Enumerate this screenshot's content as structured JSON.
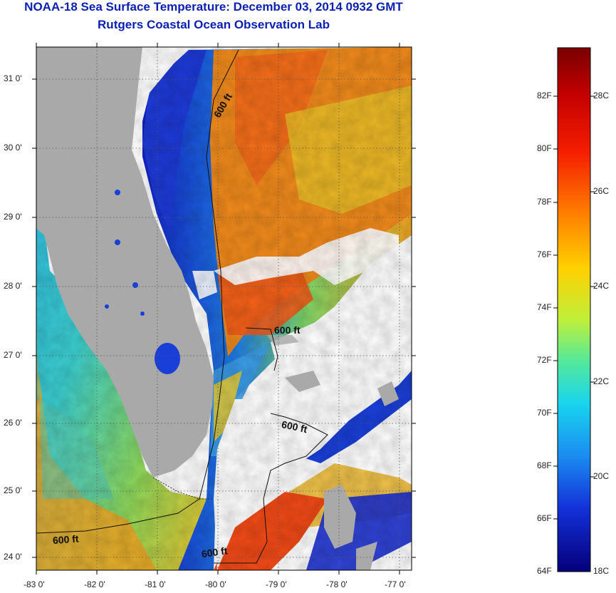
{
  "title_line1": "NOAA-18 Sea Surface Temperature:  December 03, 2014 0932 GMT",
  "title_line2": "Rutgers Coastal Ocean Observation Lab",
  "colors": {
    "title": "#0b1fb0",
    "land": "#a9a9a9",
    "cloud": "#ffffff"
  },
  "map": {
    "lat_ticks": [
      "31 0'",
      "30 0'",
      "29 0'",
      "28 0'",
      "27 0'",
      "26 0'",
      "25 0'",
      "24 0'"
    ],
    "lon_ticks": [
      "-83 0'",
      "-82 0'",
      "-81 0'",
      "-80 0'",
      "-79 0'",
      "-78 0'",
      "-77 0'"
    ],
    "contour_label": "600 ft"
  },
  "colorbar": {
    "f_labels": [
      "82F",
      "80F",
      "78F",
      "76F",
      "74F",
      "72F",
      "70F",
      "68F",
      "66F",
      "64F"
    ],
    "c_labels": [
      "28C",
      "26C",
      "24C",
      "22C",
      "20C",
      "18C"
    ]
  }
}
